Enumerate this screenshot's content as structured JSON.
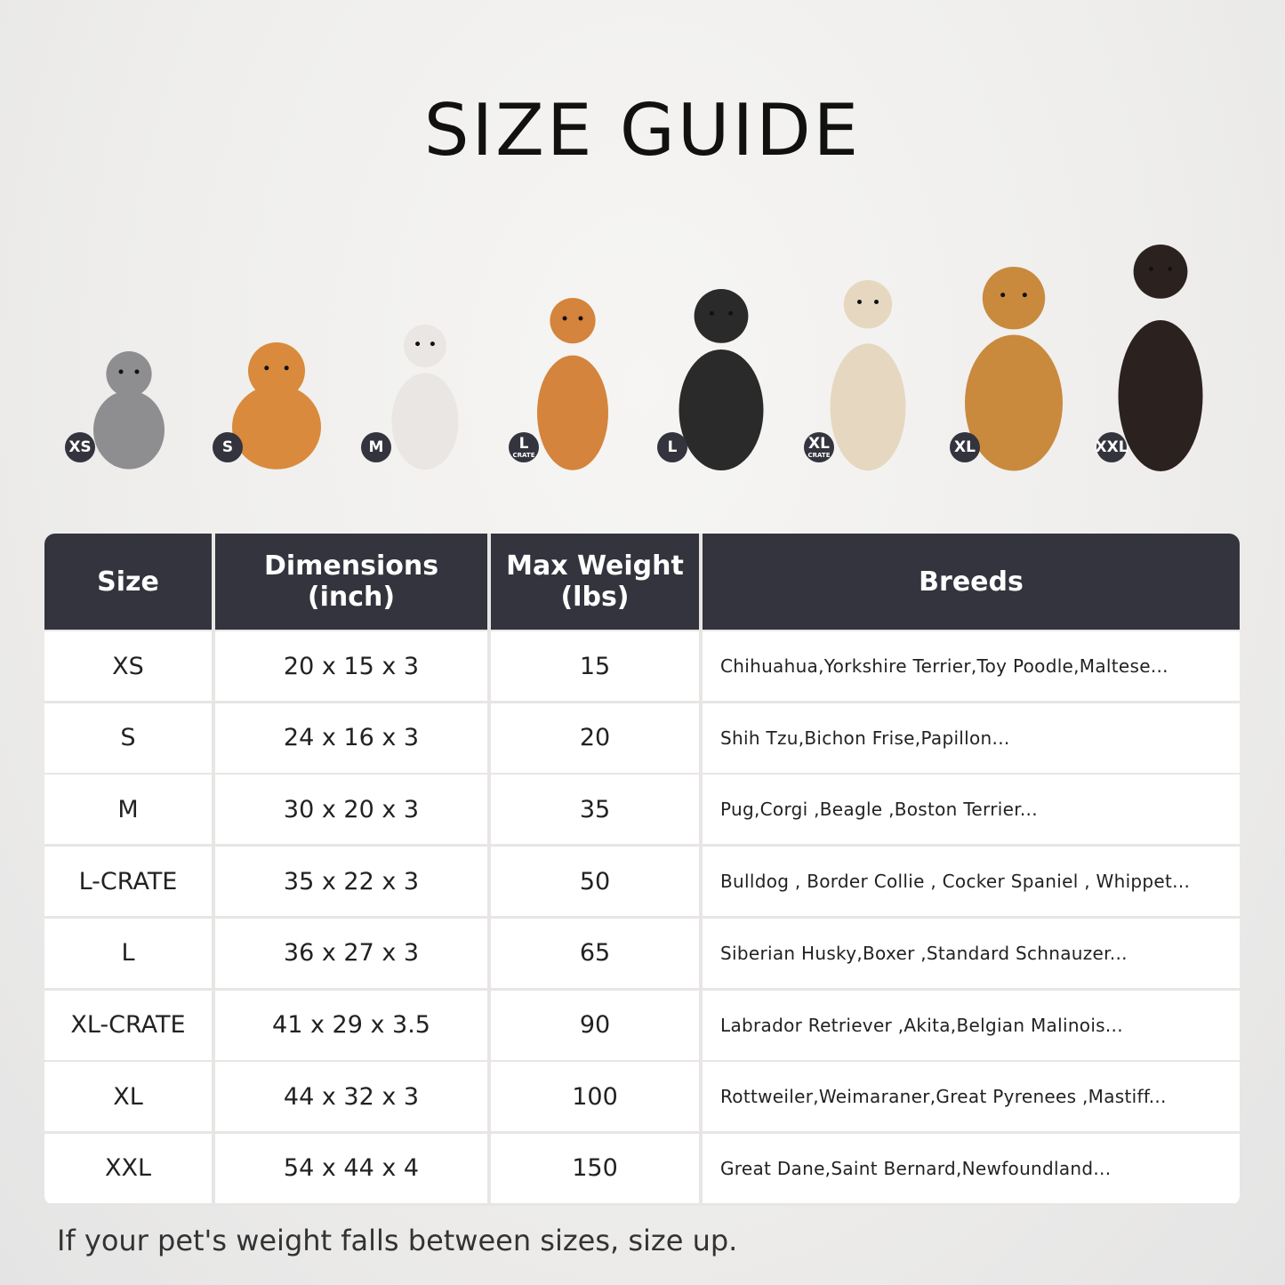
{
  "title": "SIZE GUIDE",
  "pets": [
    {
      "badge": "XS",
      "sub": "",
      "animal": "cat",
      "color": "#8e8e90"
    },
    {
      "badge": "S",
      "sub": "",
      "animal": "pomeranian",
      "color": "#d98a3c"
    },
    {
      "badge": "M",
      "sub": "",
      "animal": "french-bulldog",
      "color": "#e9e6e3"
    },
    {
      "badge": "L",
      "sub": "CRATE",
      "animal": "shiba-inu",
      "color": "#d4843d"
    },
    {
      "badge": "L",
      "sub": "",
      "animal": "border-collie",
      "color": "#2a2a2a"
    },
    {
      "badge": "XL",
      "sub": "CRATE",
      "animal": "labrador",
      "color": "#e6d8c0"
    },
    {
      "badge": "XL",
      "sub": "",
      "animal": "golden-retriever",
      "color": "#c98a3e"
    },
    {
      "badge": "XXL",
      "sub": "",
      "animal": "doberman",
      "color": "#2b2220"
    }
  ],
  "table": {
    "headers": [
      "Size",
      "Dimensions\n(inch)",
      "Max Weight\n(lbs)",
      "Breeds"
    ],
    "rows": [
      [
        "XS",
        "20 x 15 x 3",
        "15",
        "Chihuahua,Yorkshire Terrier,Toy Poodle,Maltese..."
      ],
      [
        "S",
        "24 x 16 x 3",
        "20",
        "Shih Tzu,Bichon Frise,Papillon..."
      ],
      [
        "M",
        "30 x 20 x 3",
        "35",
        "Pug,Corgi ,Beagle ,Boston Terrier..."
      ],
      [
        "L-CRATE",
        "35 x 22 x 3",
        "50",
        "Bulldog , Border Collie , Cocker Spaniel , Whippet..."
      ],
      [
        "L",
        "36 x 27 x 3",
        "65",
        "Siberian Husky,Boxer ,Standard Schnauzer..."
      ],
      [
        "XL-CRATE",
        "41 x 29 x 3.5",
        "90",
        "Labrador Retriever ,Akita,Belgian Malinois..."
      ],
      [
        "XL",
        "44 x 32 x 3",
        "100",
        "Rottweiler,Weimaraner,Great Pyrenees ,Mastiff..."
      ],
      [
        "XXL",
        "54 x 44 x 4",
        "150",
        "Great Dane,Saint Bernard,Newfoundland..."
      ]
    ]
  },
  "note": "If your pet's weight falls between sizes, size up.",
  "colors": {
    "header_bg": "#33343d",
    "badge_bg": "#33343d"
  }
}
